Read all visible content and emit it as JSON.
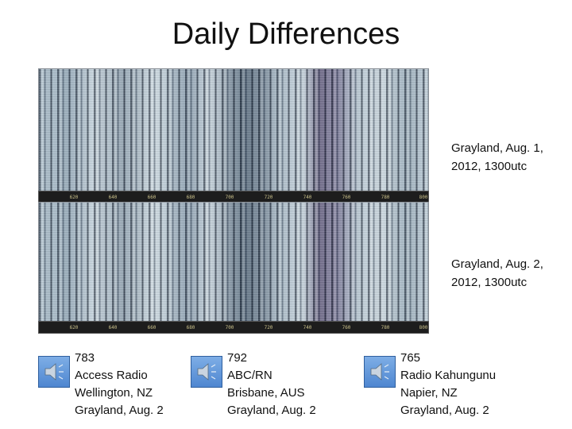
{
  "slide": {
    "title": "Daily Differences"
  },
  "spectrograms": [
    {
      "caption_line1": "Grayland, Aug. 1,",
      "caption_line2": "2012, 1300utc",
      "axis_ticks": [
        "620",
        "640",
        "660",
        "680",
        "700",
        "720",
        "740",
        "760",
        "780",
        "800"
      ]
    },
    {
      "caption_line1": "Grayland, Aug. 2,",
      "caption_line2": "2012, 1300utc",
      "axis_ticks": [
        "620",
        "640",
        "660",
        "680",
        "700",
        "720",
        "740",
        "760",
        "780",
        "800"
      ]
    }
  ],
  "audio_clips": [
    {
      "icon": "speaker-icon",
      "frequency": "783",
      "station": "Access Radio",
      "location": "Wellington, NZ",
      "recorded": "Grayland, Aug. 2"
    },
    {
      "icon": "speaker-icon",
      "frequency": "792",
      "station": "ABC/RN",
      "location": "Brisbane, AUS",
      "recorded": "Grayland, Aug. 2"
    },
    {
      "icon": "speaker-icon",
      "frequency": "765",
      "station": "Radio Kahungunu",
      "location": "Napier, NZ",
      "recorded": "Grayland, Aug. 2"
    }
  ],
  "colors": {
    "speaker_button": "#5b8fd6",
    "axis_background": "#1d1d1d"
  }
}
